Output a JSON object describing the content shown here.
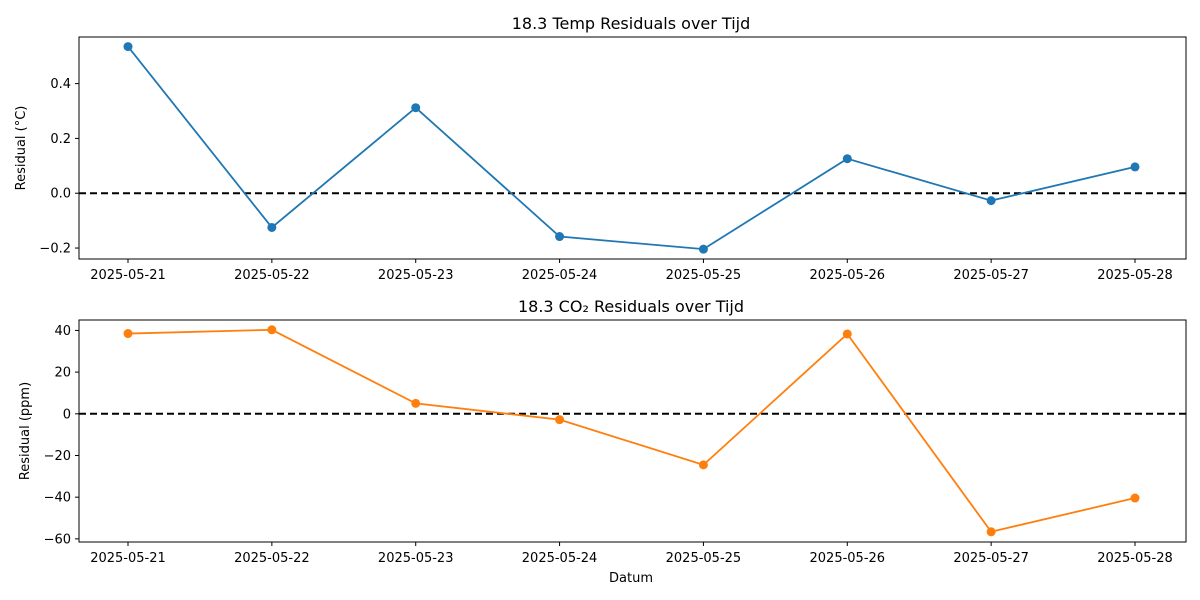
{
  "chart_data": [
    {
      "type": "line",
      "title": "18.3 Temp Residuals over Tijd",
      "xlabel": "",
      "ylabel": "Residual (°C)",
      "x": [
        "2025-05-21",
        "2025-05-22",
        "2025-05-23",
        "2025-05-24",
        "2025-05-25",
        "2025-05-26",
        "2025-05-27",
        "2025-05-28"
      ],
      "series": [
        {
          "color": "#1f77b4",
          "marker": "circle",
          "values": [
            0.535,
            -0.125,
            0.312,
            -0.158,
            -0.204,
            0.126,
            -0.027,
            0.096
          ]
        }
      ],
      "reference_line": {
        "y": 0,
        "style": "dashed",
        "color": "#000000"
      },
      "ylim": [
        -0.24,
        0.57
      ],
      "yticks": [
        -0.2,
        0.0,
        0.2,
        0.4
      ],
      "ytick_labels": [
        "−0.2",
        "0.0",
        "0.2",
        "0.4"
      ],
      "grid": false,
      "legend": "none"
    },
    {
      "type": "line",
      "title": "18.3 CO₂ Residuals over Tijd",
      "xlabel": "Datum",
      "ylabel": "Residual (ppm)",
      "x": [
        "2025-05-21",
        "2025-05-22",
        "2025-05-23",
        "2025-05-24",
        "2025-05-25",
        "2025-05-26",
        "2025-05-27",
        "2025-05-28"
      ],
      "series": [
        {
          "color": "#ff7f0e",
          "marker": "circle",
          "values": [
            38.5,
            40.3,
            5.0,
            -2.8,
            -24.5,
            38.3,
            -56.6,
            -40.4
          ]
        }
      ],
      "reference_line": {
        "y": 0,
        "style": "dashed",
        "color": "#000000"
      },
      "ylim": [
        -61.5,
        45.0
      ],
      "yticks": [
        -60,
        -40,
        -20,
        0,
        20,
        40
      ],
      "ytick_labels": [
        "−60",
        "−40",
        "−20",
        "0",
        "20",
        "40"
      ],
      "grid": false,
      "legend": "none"
    }
  ]
}
